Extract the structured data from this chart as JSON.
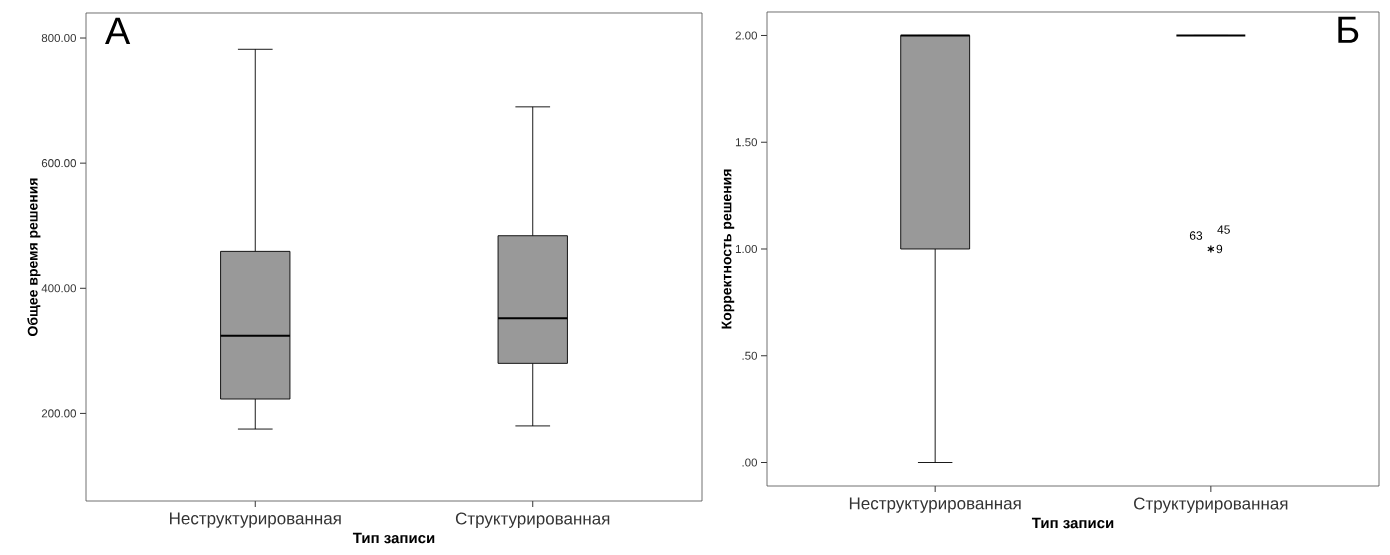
{
  "chart_data": [
    {
      "type": "box",
      "title": "А",
      "xlabel": "Тип записи",
      "ylabel": "Общее время решения",
      "categories": [
        "Неструктурированная",
        "Структурированная"
      ],
      "colors": [
        "#999999",
        "#999999"
      ],
      "boxes": [
        {
          "low": 175,
          "q1": 223,
          "median": 324,
          "q3": 459,
          "high": 782
        },
        {
          "low": 180,
          "q1": 280,
          "median": 352,
          "q3": 484,
          "high": 690
        }
      ],
      "ylim": [
        60,
        840
      ],
      "yticks": [
        {
          "value": 200,
          "label": "200.00"
        },
        {
          "value": 400,
          "label": "400.00"
        },
        {
          "value": 600,
          "label": "600.00"
        },
        {
          "value": 800,
          "label": "800.00"
        }
      ]
    },
    {
      "type": "box",
      "title": "Б",
      "xlabel": "Тип записи",
      "ylabel": "Корректность решения",
      "categories": [
        "Неструктурированная",
        "Структурированная"
      ],
      "colors": [
        "#999999",
        "#000000"
      ],
      "marker": "star",
      "boxes": [
        {
          "low": 0,
          "q1": 1,
          "median": 2,
          "q3": 2,
          "high": 2
        },
        {
          "low": 2,
          "q1": 2,
          "median": 2,
          "q3": 2,
          "high": 2,
          "outliers": [
            1
          ]
        }
      ],
      "ylim": [
        -0.11,
        2.11
      ],
      "yticks": [
        {
          "value": 0,
          "label": ".00"
        },
        {
          "value": 0.5,
          "label": ".50"
        },
        {
          "value": 1,
          "label": "1.00"
        },
        {
          "value": 1.5,
          "label": "1.50"
        },
        {
          "value": 2,
          "label": "2.00"
        }
      ],
      "annotations": [
        "63",
        "45",
        "9"
      ]
    }
  ]
}
